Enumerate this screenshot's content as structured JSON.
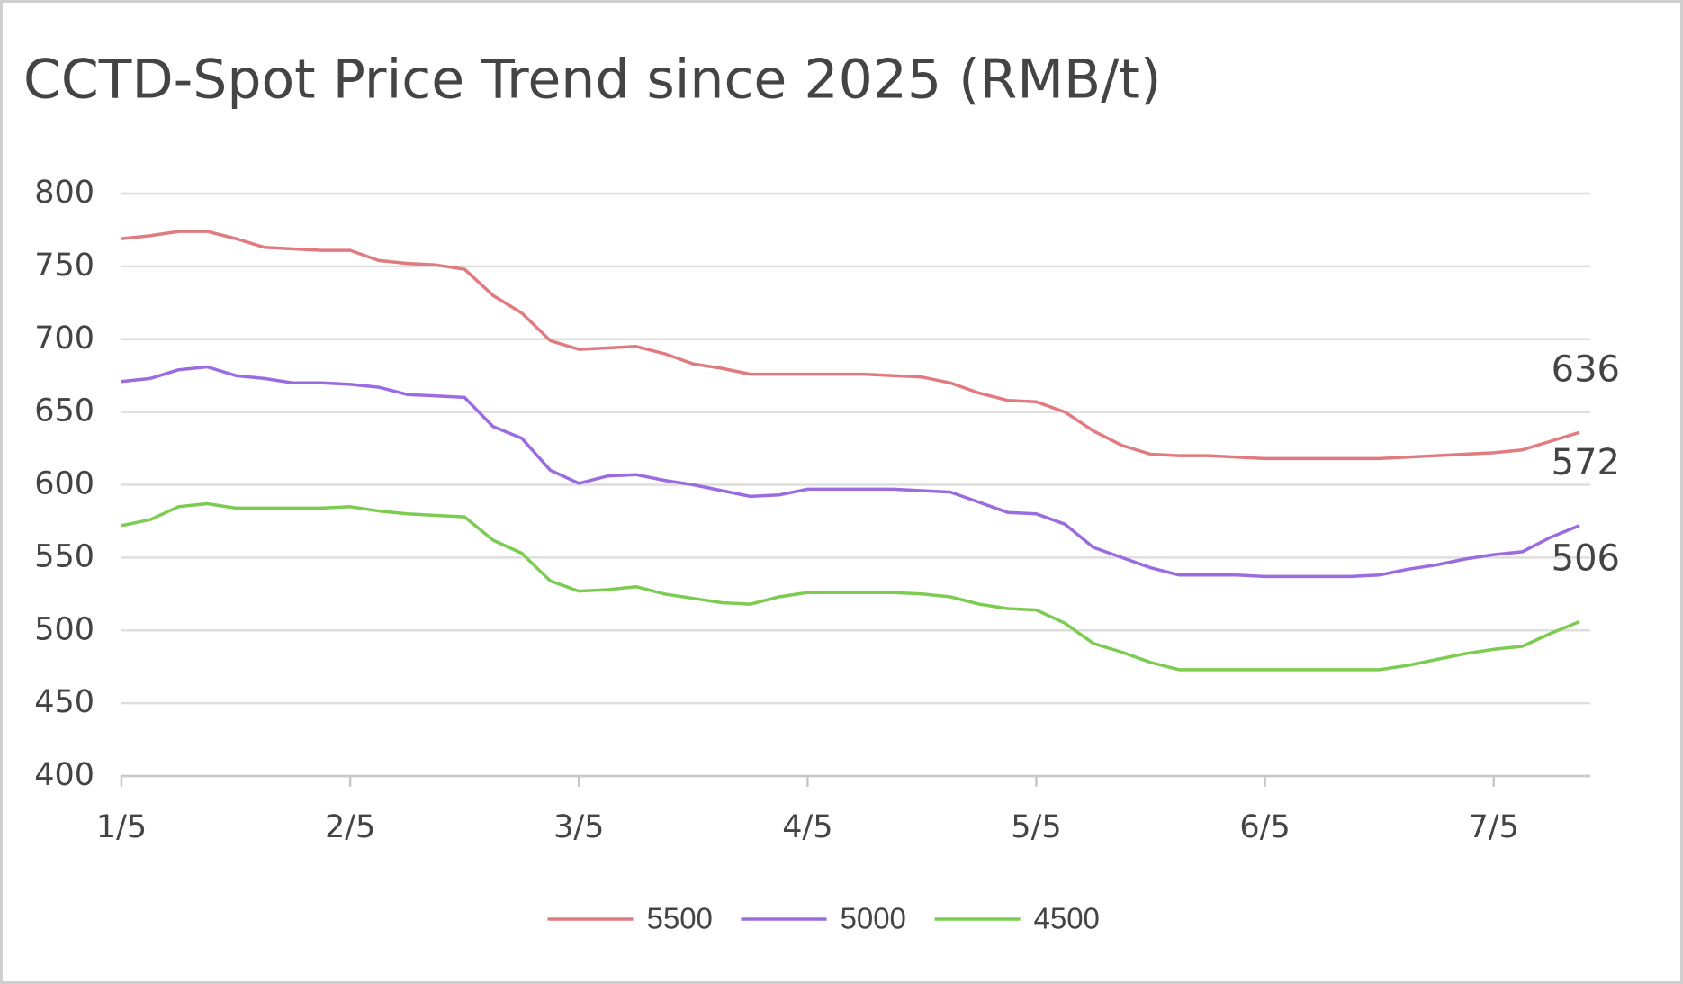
{
  "chart_data": {
    "type": "line",
    "title": "CCTD-Spot Price Trend since 2025 (RMB/t)",
    "categories": [
      "1/5",
      null,
      null,
      null,
      null,
      null,
      null,
      null,
      "2/5",
      null,
      null,
      null,
      null,
      null,
      null,
      null,
      "3/5",
      null,
      null,
      null,
      null,
      null,
      null,
      null,
      "4/5",
      null,
      null,
      null,
      null,
      null,
      null,
      null,
      "5/5",
      null,
      null,
      null,
      null,
      null,
      null,
      null,
      "6/5",
      null,
      null,
      null,
      null,
      null,
      null,
      null,
      "7/5",
      null,
      null,
      null
    ],
    "series": [
      {
        "name": "5500",
        "color": "#e07b7f",
        "values": [
          769,
          771,
          774,
          774,
          769,
          763,
          762,
          761,
          761,
          754,
          752,
          751,
          748,
          730,
          718,
          699,
          693,
          694,
          695,
          690,
          683,
          680,
          676,
          676,
          676,
          676,
          676,
          675,
          674,
          670,
          663,
          658,
          657,
          650,
          637,
          627,
          621,
          620,
          620,
          619,
          618,
          618,
          618,
          618,
          618,
          619,
          620,
          621,
          622,
          624,
          630,
          636
        ]
      },
      {
        "name": "5000",
        "color": "#9b6be0",
        "values": [
          671,
          673,
          679,
          681,
          675,
          673,
          670,
          670,
          669,
          667,
          662,
          661,
          660,
          640,
          632,
          610,
          601,
          606,
          607,
          603,
          600,
          596,
          592,
          593,
          597,
          597,
          597,
          597,
          596,
          595,
          588,
          581,
          580,
          573,
          557,
          550,
          543,
          538,
          538,
          538,
          537,
          537,
          537,
          537,
          538,
          542,
          545,
          549,
          552,
          554,
          564,
          572
        ]
      },
      {
        "name": "4500",
        "color": "#7ccc52",
        "values": [
          572,
          576,
          585,
          587,
          584,
          584,
          584,
          584,
          585,
          582,
          580,
          579,
          578,
          562,
          553,
          534,
          527,
          528,
          530,
          525,
          522,
          519,
          518,
          523,
          526,
          526,
          526,
          526,
          525,
          523,
          518,
          515,
          514,
          505,
          491,
          485,
          478,
          473,
          473,
          473,
          473,
          473,
          473,
          473,
          473,
          476,
          480,
          484,
          487,
          489,
          498,
          506
        ]
      }
    ],
    "ylim": [
      400,
      800
    ],
    "yticks": [
      400,
      450,
      500,
      550,
      600,
      650,
      700,
      750,
      800
    ],
    "grid": true,
    "legend": "bottom"
  }
}
